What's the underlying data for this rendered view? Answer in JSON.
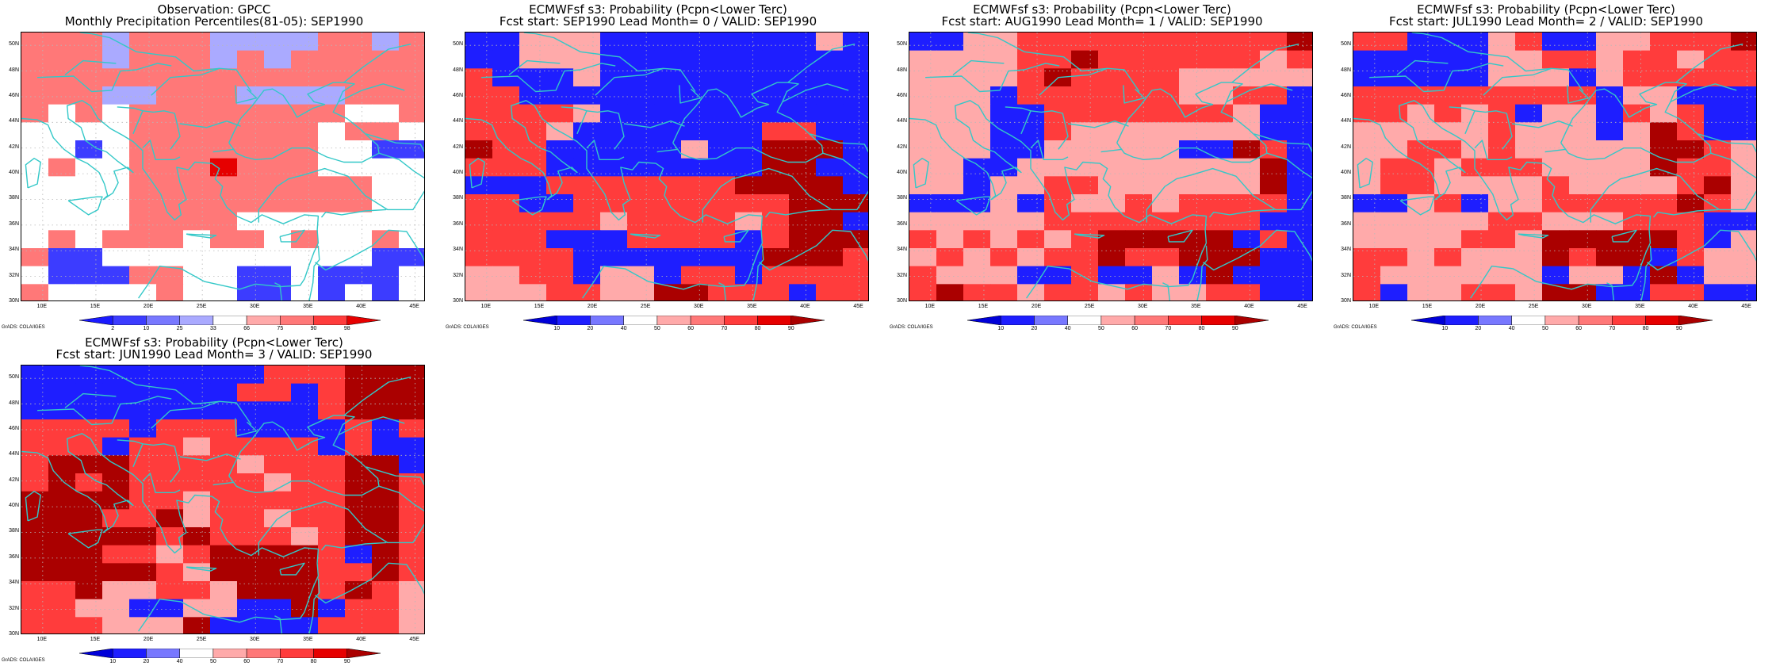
{
  "colors": {
    "coast": "#33c8c8",
    "grid": "#b8b8b8",
    "frame": "#000000",
    "white": "#ffffff"
  },
  "map": {
    "lon_range": [
      8,
      46
    ],
    "lat_range": [
      30,
      51
    ],
    "y_labels": [
      "30N",
      "32N",
      "34N",
      "36N",
      "38N",
      "40N",
      "42N",
      "44N",
      "46N",
      "48N",
      "50N"
    ],
    "x_labels": [
      "10E",
      "15E",
      "20E",
      "25E",
      "30E",
      "35E",
      "40E",
      "45E"
    ],
    "credit": "GrADS: COLA/IGES"
  },
  "panels": [
    {
      "id": "obs",
      "title1": "Observation: GPCC",
      "title2": "Monthly Precipitation Percentiles(81-05): SEP1990",
      "colorbar": {
        "labels": [
          "2",
          "10",
          "25",
          "33",
          "66",
          "75",
          "90",
          "98"
        ],
        "colors": [
          "#1a1aff",
          "#3c3cff",
          "#7878ff",
          "#aaaaff",
          "#ffffff",
          "#ffaaaa",
          "#ff7878",
          "#ff3c3c",
          "#e60000"
        ]
      },
      "grid": [
        "rrr6rrr6666rr6r",
        "rrr6rrr6r6rrrrr",
        "rrrrrrrrrrrrrrr",
        "rrr66rrr6666rrr",
        "rwrwrrrrrrrrwwr",
        "wwwwrrrrrrrwrrw",
        "wwBwrrrrrrrwwBB",
        "wrwwrrrRrrrwwww",
        "wwwwrrrrrrrrrww",
        "wwwwrrrrrrrrrww",
        "wwwwrrrrwwwwwww",
        "wrwrrrwrrwrwwrw",
        "rBBwwwwwwwwwwBB",
        "wBBBrrwwBBwBBBw",
        "rwwwwrwwBBwBwBw"
      ]
    },
    {
      "id": "lead0",
      "title1": "ECMWFsf s3: Probability (Pcpn<Lower Terc)",
      "title2": "Fcst start: SEP1990   Lead Month= 0 / VALID: SEP1990",
      "colorbar": {
        "labels": [
          "10",
          "20",
          "40",
          "50",
          "60",
          "70",
          "80",
          "90"
        ],
        "colors": [
          "#0000d8",
          "#1e1eff",
          "#7878ff",
          "#ffffff",
          "#ffaaaa",
          "#ff7878",
          "#ff3c3c",
          "#e60000",
          "#aa0000"
        ]
      },
      "grid": [
        "BBwwwBBBBBBBBwB",
        "BBwwwBBBBBBBBBB",
        "rBBBwBBBBBBBBBB",
        "rrBBBBBBBBBBBBB",
        "rrrrwBBBBBBBBBB",
        "rrrwBBBBBBBrrBB",
        "RrrBBBBBwBBRRRB",
        "rrrBBBBBBBBRRBB",
        "BBBrrrrrrrRRRRB",
        "rrBBrrrrrrrrRRR",
        "rrrrrwrrrrwrRRB",
        "rrrBBBrrrrBrRRR",
        "rrrrBBBBBBBRRRr",
        "wwrrBwwBrrBrrrr",
        "wwwrrwwRRrrrBrr"
      ]
    },
    {
      "id": "lead1",
      "title1": "ECMWFsf s3: Probability (Pcpn<Lower Terc)",
      "title2": "Fcst start: AUG1990   Lead Month= 1 / VALID: SEP1990",
      "colorbar": {
        "labels": [
          "10",
          "20",
          "40",
          "50",
          "60",
          "70",
          "80",
          "90"
        ],
        "colors": [
          "#0000d8",
          "#1e1eff",
          "#7878ff",
          "#ffffff",
          "#ffaaaa",
          "#ff7878",
          "#ff3c3c",
          "#e60000",
          "#aa0000"
        ]
      },
      "grid": [
        "BBwwrrrrrrrrrrR",
        "wwwwrrRrrrrrrwr",
        "wwwwrRrrrrwwwww",
        "wwwBrrrrrrwwrrB",
        "wwwBBrrrrrrrwBB",
        "wwwBBrwwwwwwwBB",
        "wwwBBwwwwwBBRrB",
        "wwBBwwwwwwwwwRB",
        "wwBwwrrwwwwwwRB",
        "BBBwBrwwrwrrrrB",
        "wwwwwrrrrrrrrBB",
        "rwrwrwrRRRRRBrB",
        "wrwrwrrRrrRRRBB",
        "rwwwBBrBBwBRBBB",
        "rRrrwrrwrwwrrBB"
      ]
    },
    {
      "id": "lead2",
      "title1": "ECMWFsf s3: Probability (Pcpn<Lower Terc)",
      "title2": "Fcst start: JUL1990   Lead Month= 2 / VALID: SEP1990",
      "colorbar": {
        "labels": [
          "10",
          "20",
          "40",
          "50",
          "60",
          "70",
          "80",
          "90"
        ],
        "colors": [
          "#0000d8",
          "#1e1eff",
          "#7878ff",
          "#ffffff",
          "#ffaaaa",
          "#ff7878",
          "#ff3c3c",
          "#e60000",
          "#aa0000"
        ]
      },
      "grid": [
        "rrBBBwrBBwwrrrR",
        "BBBBBwwrrwrrwrr",
        "BBBBBwwwBwrrrrr",
        "rrrrrrrrrBwwBBB",
        "rrwrwrBwwBrwrBB",
        "wwwwwrwwwBwRrBB",
        "wwrrwrwwwwwRRrw",
        "wrrwrrrwwwwRrrw",
        "wrrwwwwrwwwwrRw",
        "BBwrBwwrrrrrRrw",
        "wwwwwrrwwwrrrBB",
        "wwwwrrwRRRRRrBw",
        "rrwrwwwRrRRBrww",
        "rwwwwwwBwwBRBww",
        "rBwwrrwRRBBrrBB"
      ]
    },
    {
      "id": "lead3",
      "title1": "ECMWFsf s3: Probability (Pcpn<Lower Terc)",
      "title2": "Fcst start: JUN1990   Lead Month= 3 / VALID: SEP1990",
      "colorbar": {
        "labels": [
          "10",
          "20",
          "40",
          "50",
          "60",
          "70",
          "80",
          "90"
        ],
        "colors": [
          "#0000d8",
          "#1e1eff",
          "#7878ff",
          "#ffffff",
          "#ffaaaa",
          "#ff7878",
          "#ff3c3c",
          "#e60000",
          "#aa0000"
        ]
      },
      "grid": [
        "BBBBBBBBBrrrRRR",
        "BBBBBBBBrrBrRRR",
        "BBBBBBBBBBBrRRR",
        "rrrrBrrrBBBBrBr",
        "rrrBrrwrrrrBrBB",
        "rRRRrrrrwrrrRRB",
        "rRrRrrrrrwrrRRr",
        "RRRRrrwrrrrrRRr",
        "RRRrrRwrrwrrRRr",
        "RRRRRrRrrrwrRRr",
        "RRRrrwrRRRRrBRr",
        "RRRRRrwRRRRrrRr",
        "rrRwwrrwRRRrRrw",
        "rrwwBBwwBBRBrrw",
        "rrrwwwRBBBBrrrw"
      ]
    }
  ]
}
